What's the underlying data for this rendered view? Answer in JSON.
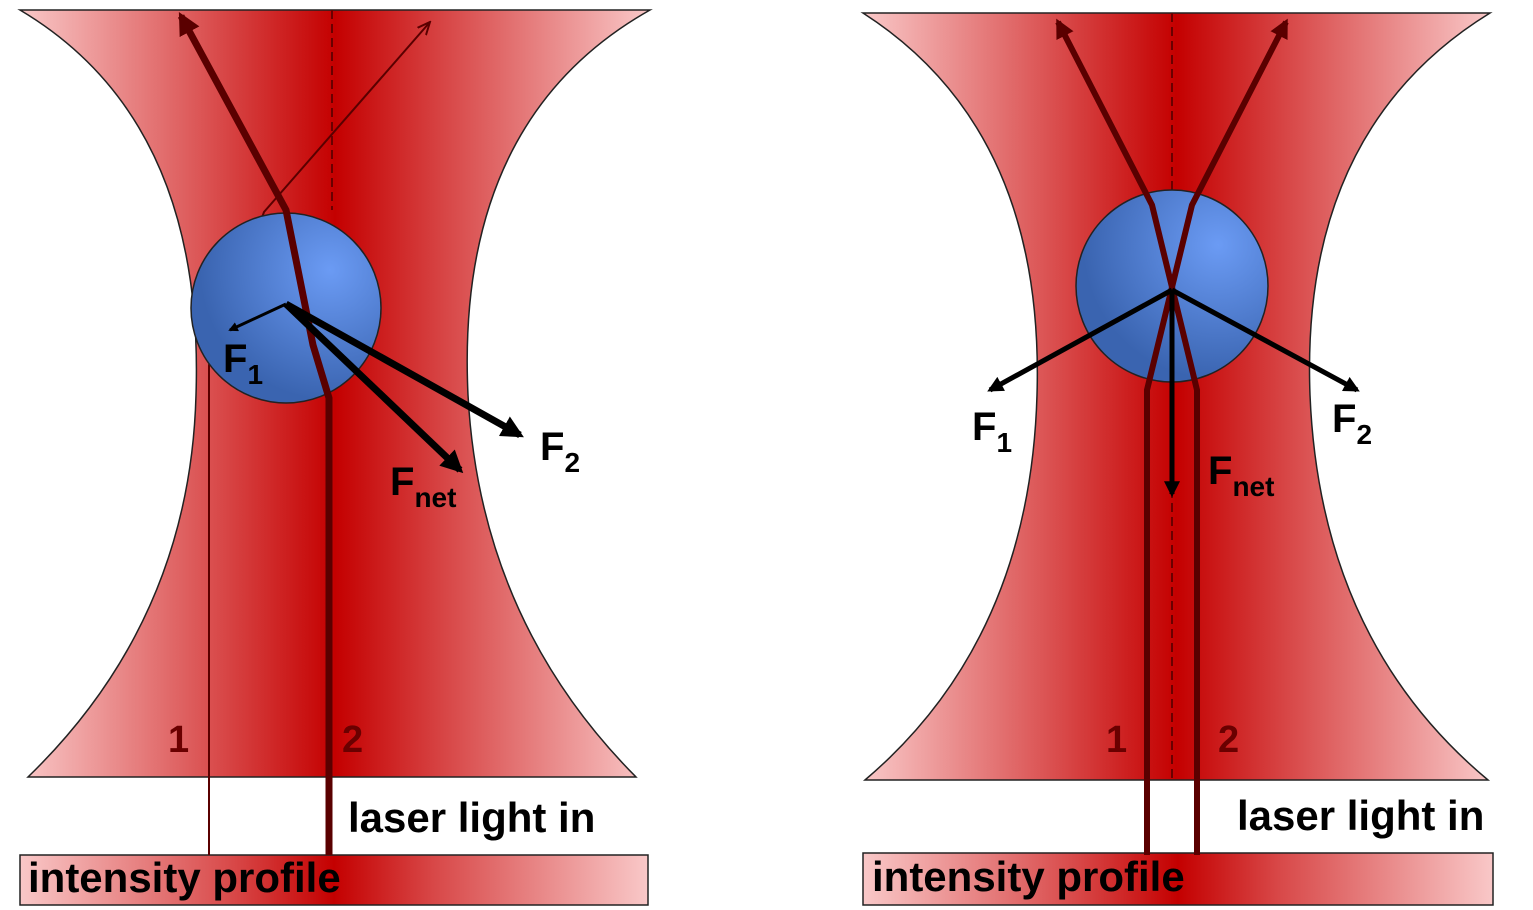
{
  "colors": {
    "beam_center": "#c40000",
    "beam_edge": "#f9c8c8",
    "ray": "#5a0000",
    "ray_number": "#6a0000",
    "bead_light": "#6b9bf4",
    "bead_dark": "#3a64b0",
    "force_arrow": "#000000",
    "outline": "#222222"
  },
  "panels": [
    {
      "id": "off-axis",
      "ray_labels": [
        "1",
        "2"
      ],
      "forces": {
        "f1": {
          "base": "F",
          "sub": "1"
        },
        "f2": {
          "base": "F",
          "sub": "2"
        },
        "fnet": {
          "base": "F",
          "sub": "net"
        }
      },
      "laser_label": "laser light in",
      "profile_label": "intensity profile"
    },
    {
      "id": "on-axis",
      "ray_labels": [
        "1",
        "2"
      ],
      "forces": {
        "f1": {
          "base": "F",
          "sub": "1"
        },
        "f2": {
          "base": "F",
          "sub": "2"
        },
        "fnet": {
          "base": "F",
          "sub": "net"
        }
      },
      "laser_label": "laser light in",
      "profile_label": "intensity profile"
    }
  ]
}
